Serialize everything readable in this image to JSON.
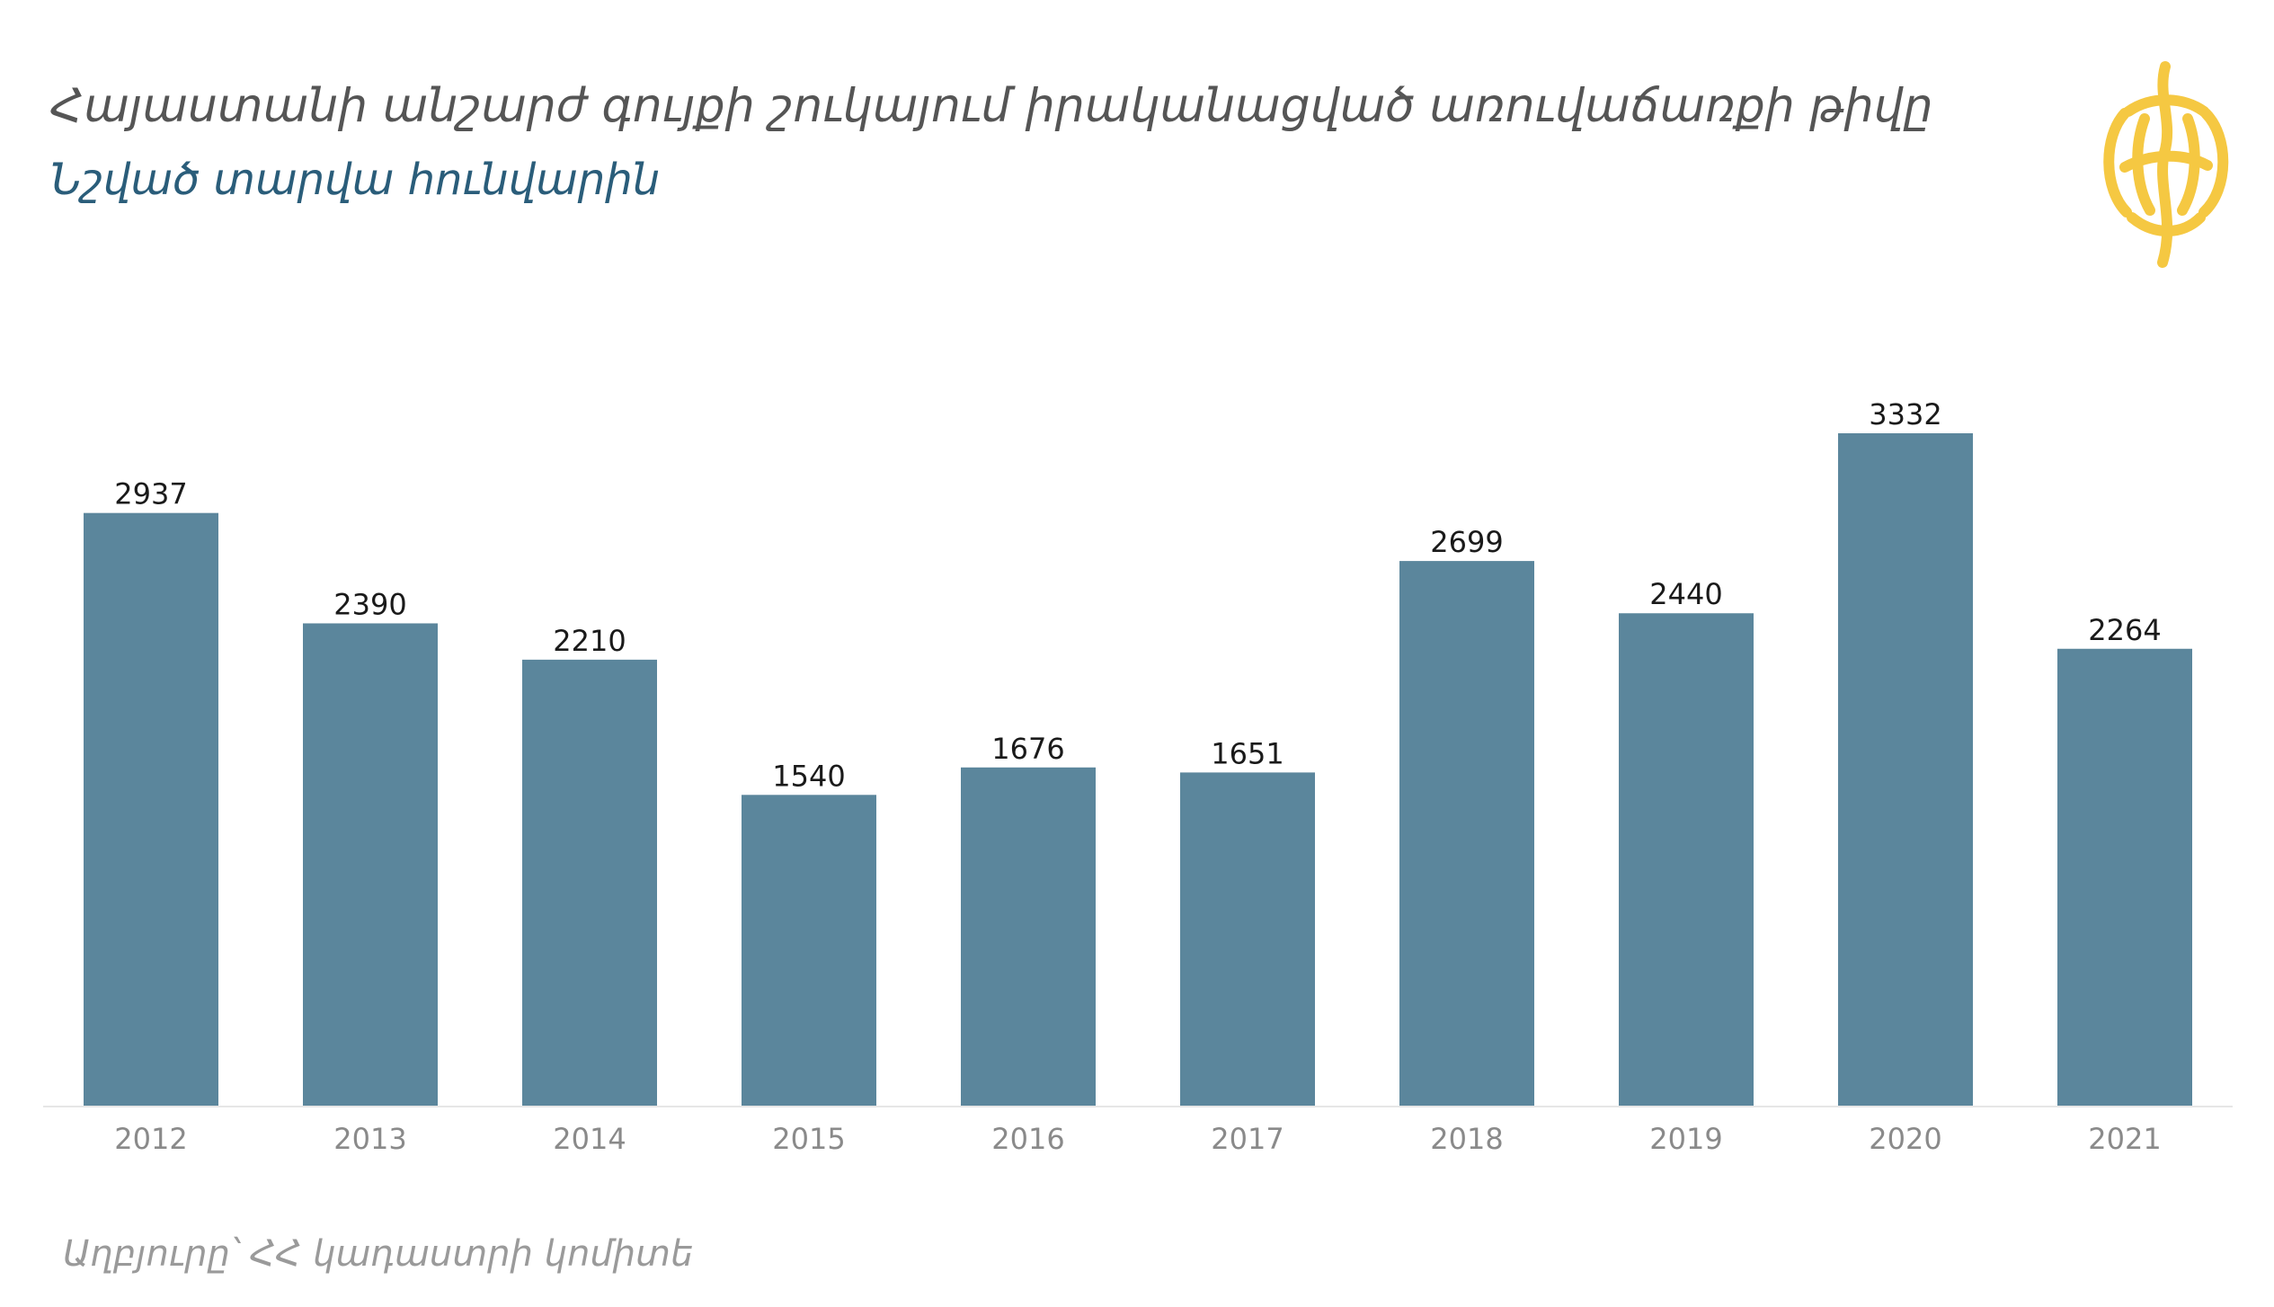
{
  "header": {
    "title": "Հայաստանի անշարժ գույքի շուկայում իրականացված առուվաճառքի թիվը",
    "subtitle": "Նշված տարվա հունվարին"
  },
  "footer": {
    "source": "Աղբյուրը՝ ՀՀ կադաստրի կոմիտե"
  },
  "logo": {
    "icon": "globe-logo-icon",
    "color": "#f5c842"
  },
  "colors": {
    "bar": "#5b869c",
    "value_label": "#1a1a1a",
    "tick_label": "#8a8a8a"
  },
  "chart_data": {
    "type": "bar",
    "title": "Հայաստանի անշարժ գույքի շուկայում իրականացված առուվաճառքի թիվը",
    "subtitle": "Նշված տարվա հունվարին",
    "categories": [
      "2012",
      "2013",
      "2014",
      "2015",
      "2016",
      "2017",
      "2018",
      "2019",
      "2020",
      "2021"
    ],
    "values": [
      2937,
      2390,
      2210,
      1540,
      1676,
      1651,
      2699,
      2440,
      3332,
      2264
    ],
    "xlabel": "",
    "ylabel": "",
    "ylim": [
      0,
      3332
    ],
    "grid": false,
    "legend": "none",
    "data_labels": true
  }
}
